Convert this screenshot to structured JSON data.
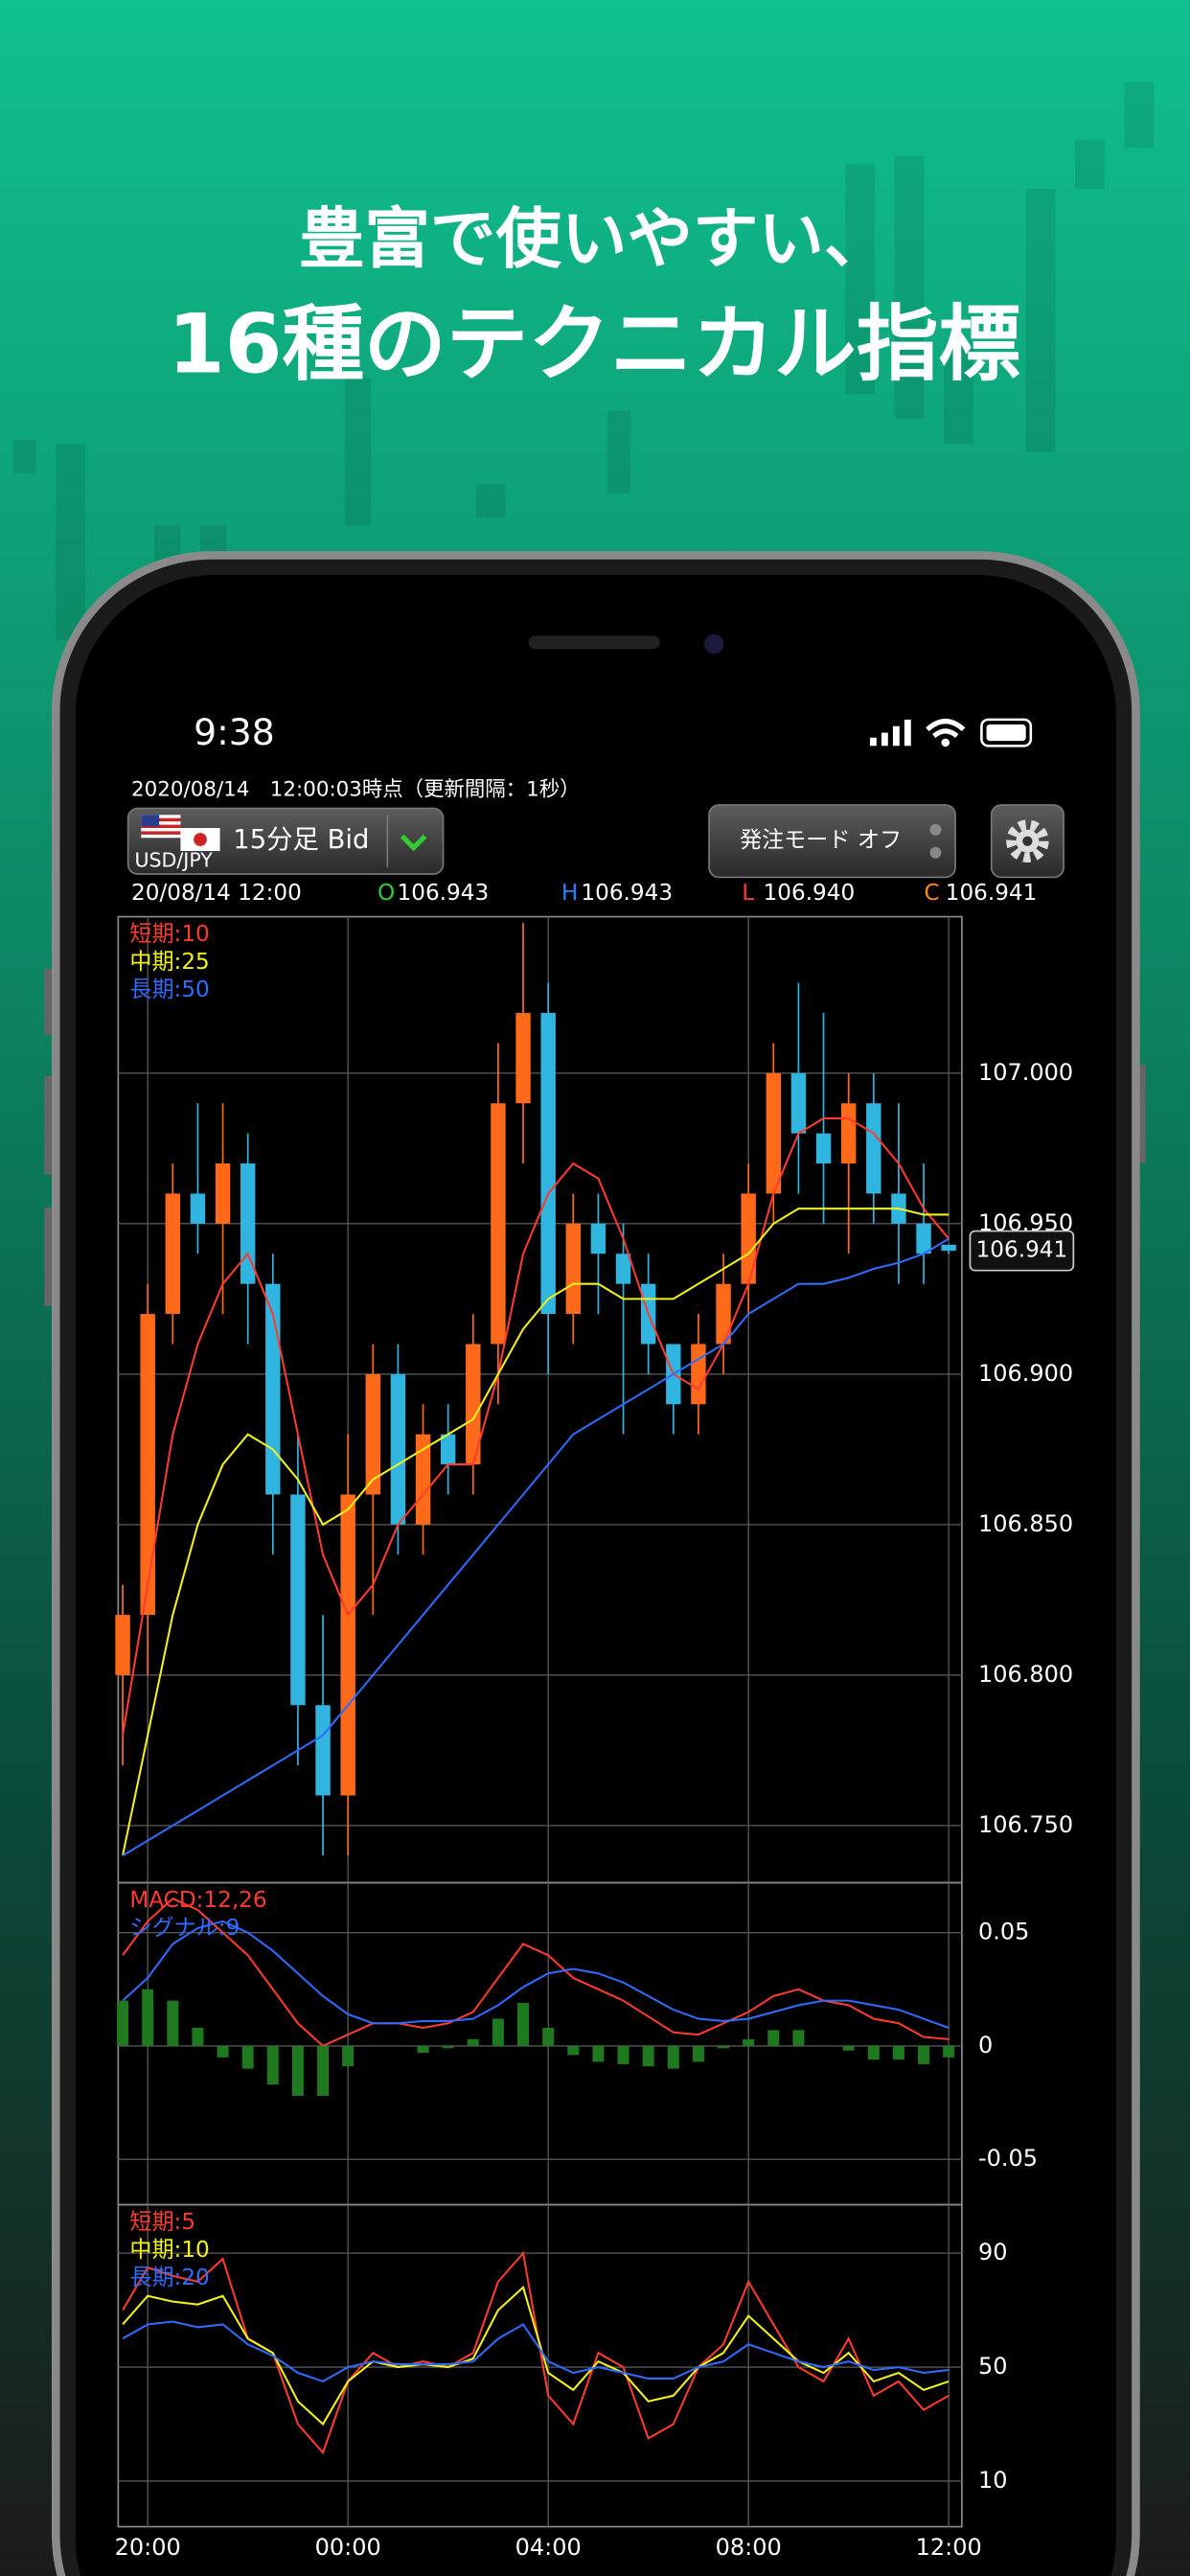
{
  "headline": {
    "line1": "豊富で使いやすい、",
    "line2": "16種のテクニカル指標"
  },
  "status_bar": {
    "time": "9:38"
  },
  "app": {
    "timestamp": "2020/08/14　12:00:03時点（更新間隔：1秒）",
    "symbol": "USD/JPY",
    "timeframe": "15分足 Bid",
    "order_mode": "発注モード オフ",
    "bar_time": "20/08/14 12:00",
    "ohlc": [
      {
        "label": "O",
        "value": "106.943"
      },
      {
        "label": "H",
        "value": "106.943"
      },
      {
        "label": "L",
        "value": "106.940"
      },
      {
        "label": "C",
        "value": "106.941"
      }
    ]
  },
  "chart_data": [
    {
      "type": "candlestick",
      "up_color": "#ff6a1a",
      "down_color": "#2fb5e0",
      "grid": true,
      "ylim": [
        106.731,
        107.052
      ],
      "yticks": [
        {
          "value": 106.75,
          "label": "106.750"
        },
        {
          "value": 106.8,
          "label": "106.800"
        },
        {
          "value": 106.85,
          "label": "106.850"
        },
        {
          "value": 106.9,
          "label": "106.900"
        },
        {
          "value": 106.95,
          "label": "106.950"
        },
        {
          "value": 107,
          "label": "107.000"
        }
      ],
      "open": [
        106.8,
        106.82,
        106.92,
        106.96,
        106.95,
        106.97,
        106.93,
        106.86,
        106.79,
        106.76,
        106.86,
        106.9,
        106.85,
        106.88,
        106.87,
        106.91,
        106.99,
        107.02,
        106.92,
        106.95,
        106.94,
        106.93,
        106.91,
        106.89,
        106.91,
        106.93,
        106.96,
        107.0,
        106.98,
        106.97,
        106.99,
        106.96,
        106.95,
        106.943
      ],
      "high": [
        106.83,
        106.93,
        106.97,
        106.99,
        106.99,
        106.98,
        106.94,
        106.88,
        106.82,
        106.88,
        106.91,
        106.91,
        106.89,
        106.89,
        106.92,
        107.01,
        107.05,
        107.03,
        106.96,
        106.96,
        106.95,
        106.94,
        106.91,
        106.92,
        106.94,
        106.97,
        107.01,
        107.03,
        107.02,
        107.0,
        107.0,
        106.99,
        106.97,
        106.943
      ],
      "low": [
        106.77,
        106.8,
        106.91,
        106.94,
        106.92,
        106.91,
        106.84,
        106.77,
        106.74,
        106.74,
        106.82,
        106.84,
        106.84,
        106.86,
        106.86,
        106.89,
        106.97,
        106.9,
        106.91,
        106.92,
        106.88,
        106.9,
        106.88,
        106.88,
        106.9,
        106.92,
        106.95,
        106.96,
        106.95,
        106.94,
        106.95,
        106.93,
        106.93,
        106.94
      ],
      "close": [
        106.82,
        106.92,
        106.96,
        106.95,
        106.97,
        106.93,
        106.86,
        106.79,
        106.76,
        106.86,
        106.9,
        106.85,
        106.88,
        106.87,
        106.91,
        106.99,
        107.02,
        106.92,
        106.95,
        106.94,
        106.93,
        106.91,
        106.89,
        106.91,
        106.93,
        106.96,
        107.0,
        106.98,
        106.97,
        106.99,
        106.96,
        106.95,
        106.94,
        106.941
      ],
      "series": [
        {
          "name": "短期:10",
          "color": "#ff3b30",
          "values": [
            106.78,
            106.83,
            106.88,
            106.91,
            106.93,
            106.94,
            106.92,
            106.88,
            106.84,
            106.82,
            106.83,
            106.85,
            106.86,
            106.87,
            106.87,
            106.9,
            106.94,
            106.96,
            106.97,
            106.965,
            106.945,
            106.92,
            106.9,
            106.895,
            106.91,
            106.93,
            106.96,
            106.98,
            106.985,
            106.985,
            106.98,
            106.97,
            106.955,
            106.945
          ]
        },
        {
          "name": "中期:25",
          "color": "#f2f21a",
          "values": [
            106.74,
            106.78,
            106.82,
            106.85,
            106.87,
            106.88,
            106.875,
            106.865,
            106.85,
            106.855,
            106.865,
            106.87,
            106.875,
            106.88,
            106.885,
            106.9,
            106.915,
            106.925,
            106.93,
            106.93,
            106.925,
            106.925,
            106.925,
            106.93,
            106.935,
            106.94,
            106.95,
            106.955,
            106.955,
            106.955,
            106.955,
            106.955,
            106.953,
            106.953
          ]
        },
        {
          "name": "長期:50",
          "color": "#2f6bff",
          "values": [
            106.74,
            106.745,
            106.75,
            106.755,
            106.76,
            106.765,
            106.77,
            106.775,
            106.78,
            106.79,
            106.8,
            106.81,
            106.82,
            106.83,
            106.84,
            106.85,
            106.86,
            106.87,
            106.88,
            106.885,
            106.89,
            106.895,
            106.9,
            106.905,
            106.91,
            106.92,
            106.925,
            106.93,
            106.93,
            106.932,
            106.935,
            106.937,
            106.94,
            106.945
          ]
        }
      ]
    },
    {
      "type": "line",
      "grid": true,
      "ylim": [
        -0.07,
        0.072
      ],
      "yticks": [
        -0.05,
        0,
        0.05
      ],
      "series": [
        {
          "name": "MACD:12,26",
          "color": "#ff3b30",
          "values": [
            0.04,
            0.055,
            0.065,
            0.06,
            0.05,
            0.04,
            0.025,
            0.01,
            0,
            0.005,
            0.01,
            0.01,
            0.008,
            0.01,
            0.015,
            0.03,
            0.045,
            0.04,
            0.03,
            0.025,
            0.02,
            0.013,
            0.006,
            0.005,
            0.01,
            0.015,
            0.022,
            0.025,
            0.02,
            0.018,
            0.012,
            0.01,
            0.004,
            0.003
          ]
        },
        {
          "name": "シグナル:9",
          "color": "#2f6bff",
          "values": [
            0.02,
            0.03,
            0.045,
            0.052,
            0.055,
            0.05,
            0.042,
            0.032,
            0.022,
            0.014,
            0.01,
            0.01,
            0.011,
            0.011,
            0.012,
            0.018,
            0.026,
            0.032,
            0.034,
            0.032,
            0.028,
            0.022,
            0.016,
            0.012,
            0.011,
            0.012,
            0.015,
            0.018,
            0.02,
            0.02,
            0.018,
            0.016,
            0.012,
            0.008
          ]
        },
        {
          "type": "bar",
          "color": "#1f7a1f",
          "values": [
            0.02,
            0.025,
            0.02,
            0.008,
            -0.005,
            -0.01,
            -0.017,
            -0.022,
            -0.022,
            -0.009,
            0,
            0,
            -0.003,
            -0.001,
            0.003,
            0.012,
            0.019,
            0.008,
            -0.004,
            -0.007,
            -0.008,
            -0.009,
            -0.01,
            -0.007,
            -0.001,
            0.003,
            0.007,
            0.007,
            0,
            -0.002,
            -0.006,
            -0.006,
            -0.008,
            -0.005
          ]
        }
      ]
    },
    {
      "type": "line",
      "grid": true,
      "ylim": [
        -6,
        107
      ],
      "yticks": [
        10,
        50,
        90
      ],
      "categories": [
        null,
        "20:00",
        null,
        null,
        null,
        null,
        null,
        null,
        null,
        "00:00",
        null,
        null,
        null,
        null,
        null,
        null,
        null,
        "04:00",
        null,
        null,
        null,
        null,
        null,
        null,
        null,
        "08:00",
        null,
        null,
        null,
        null,
        null,
        null,
        null,
        "12:00"
      ],
      "series": [
        {
          "name": "短期:5",
          "color": "#ff3b30",
          "values": [
            70,
            85,
            82,
            80,
            88,
            60,
            55,
            30,
            20,
            45,
            55,
            50,
            52,
            50,
            55,
            80,
            90,
            40,
            30,
            55,
            50,
            25,
            30,
            50,
            58,
            80,
            65,
            50,
            45,
            60,
            40,
            45,
            35,
            40
          ]
        },
        {
          "name": "中期:10",
          "color": "#f2f21a",
          "values": [
            65,
            75,
            73,
            72,
            75,
            60,
            55,
            38,
            30,
            45,
            52,
            50,
            51,
            50,
            53,
            70,
            78,
            48,
            42,
            52,
            48,
            38,
            40,
            50,
            55,
            68,
            60,
            52,
            48,
            55,
            45,
            48,
            42,
            45
          ]
        },
        {
          "name": "長期:20",
          "color": "#2f6bff",
          "values": [
            60,
            65,
            66,
            64,
            65,
            58,
            54,
            48,
            45,
            50,
            52,
            51,
            51,
            51,
            52,
            60,
            65,
            52,
            48,
            50,
            48,
            46,
            46,
            50,
            52,
            58,
            55,
            52,
            50,
            52,
            49,
            50,
            48,
            49
          ]
        }
      ]
    }
  ]
}
